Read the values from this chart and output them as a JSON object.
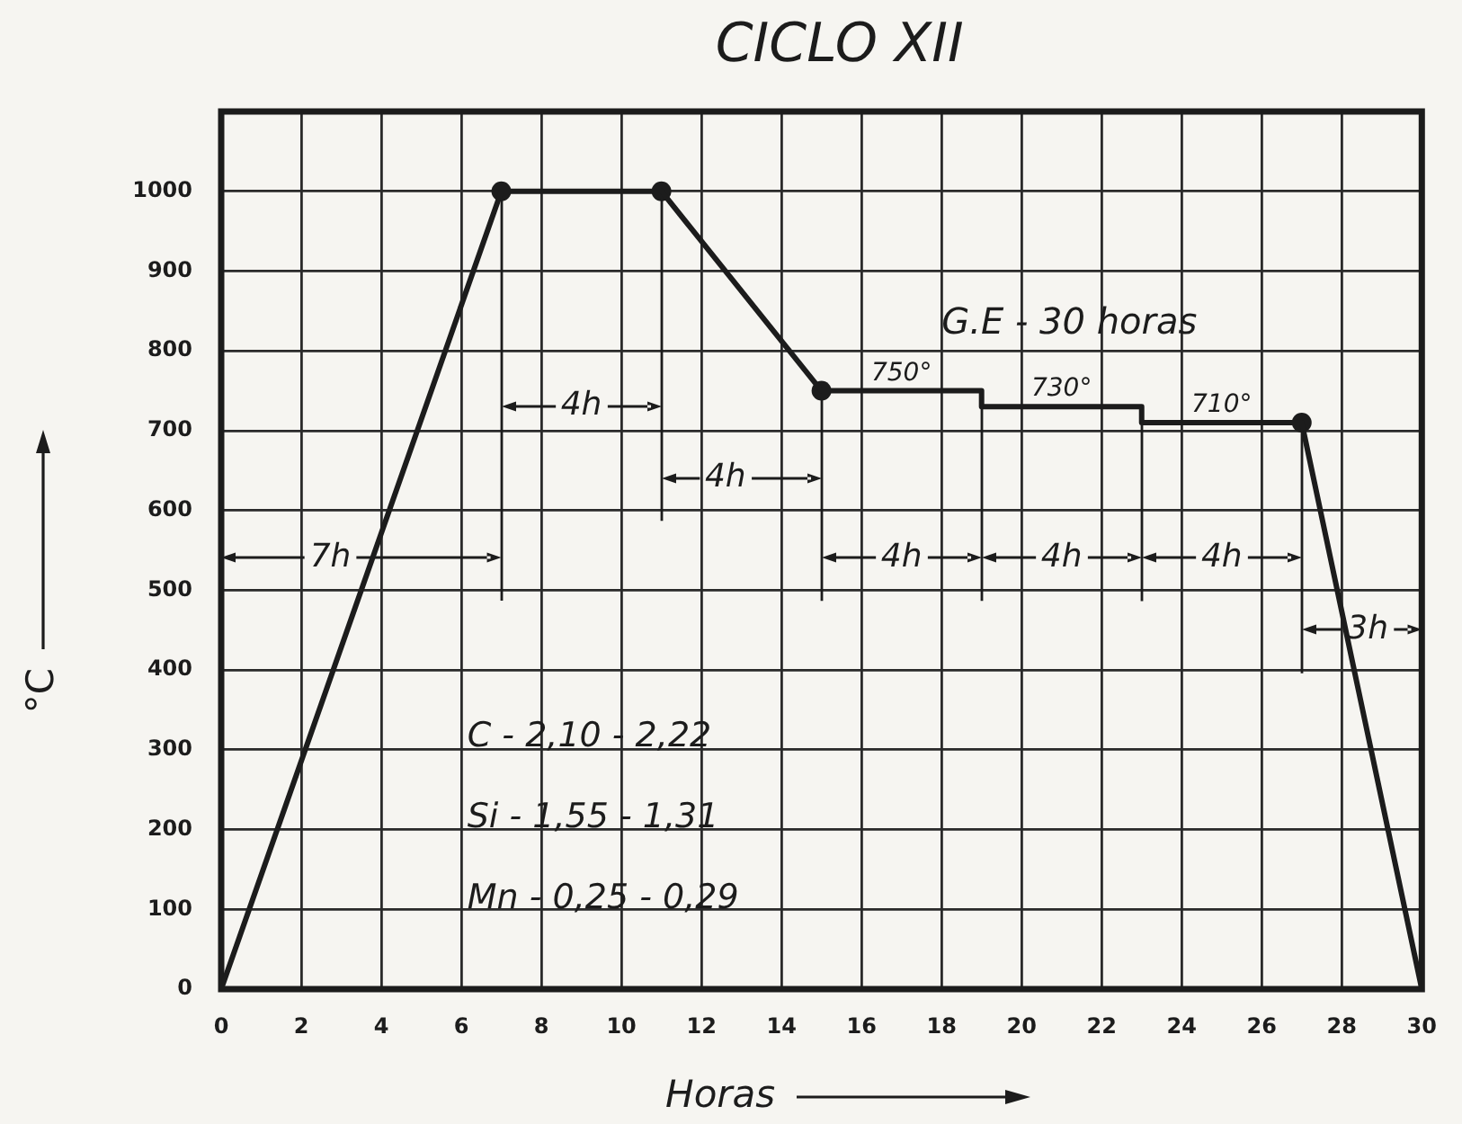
{
  "chart_data": {
    "type": "line",
    "title": "CICLO XII",
    "xlabel": "Horas",
    "ylabel": "°C",
    "xlim": [
      0,
      30
    ],
    "xticks": [
      0,
      2,
      4,
      6,
      8,
      10,
      12,
      14,
      16,
      18,
      20,
      22,
      24,
      26,
      28,
      30
    ],
    "ylim": [
      0,
      1100
    ],
    "yticks": [
      0,
      100,
      200,
      300,
      400,
      500,
      600,
      700,
      800,
      900,
      1000
    ],
    "grid": true,
    "line_style": "solid",
    "series": [
      {
        "color": "#1c1c1c",
        "marker": "none",
        "x": [
          0,
          7,
          11,
          15,
          19,
          19,
          23,
          23,
          27,
          30
        ],
        "values": [
          0,
          1000,
          1000,
          750,
          750,
          730,
          730,
          710,
          710,
          0
        ]
      },
      {
        "type": "scatter",
        "color": "#1c1c1c",
        "marker": "circle",
        "x": [
          7,
          11,
          15,
          27
        ],
        "values": [
          1000,
          1000,
          750,
          710
        ]
      }
    ],
    "annotations": [
      "7h",
      "4h",
      "4h",
      "4h",
      "4h",
      "4h",
      "3h",
      {
        "text": "750°",
        "x": 17,
        "y": 750
      },
      {
        "text": "730°",
        "x": 21,
        "y": 730
      },
      {
        "text": "710°",
        "x": 25,
        "y": 710
      },
      "G.E - 30 horas",
      "C - 2,10 - 2,22",
      "Si - 1,55 - 1,31",
      "Mn - 0,25 - 0,29"
    ]
  }
}
